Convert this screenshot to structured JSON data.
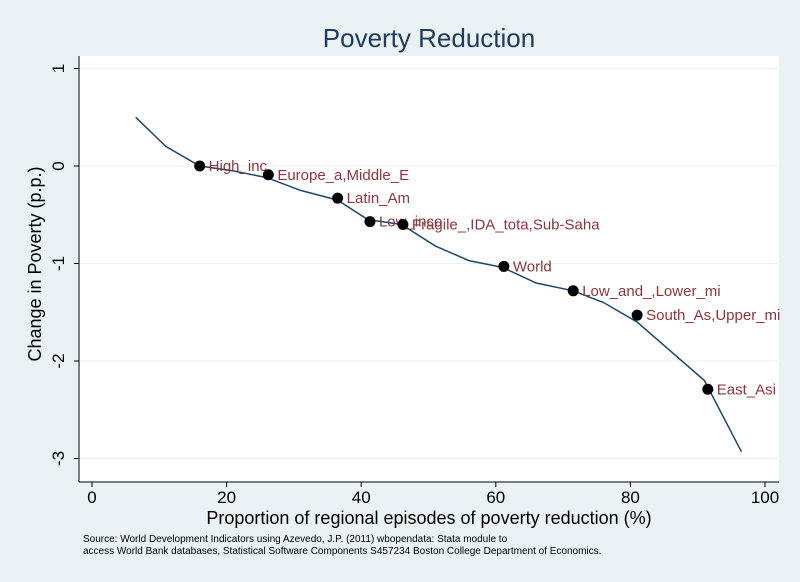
{
  "chart_data": {
    "type": "line",
    "title": "Poverty Reduction",
    "xlabel": "Proportion of regional episodes of poverty reduction (%)",
    "ylabel": "Change in Poverty (p.p.)",
    "xlim": [
      0,
      100
    ],
    "ylim": [
      -3,
      1
    ],
    "xticks": [
      "0",
      "20",
      "40",
      "60",
      "80",
      "100"
    ],
    "yticks": [
      "1",
      "0",
      "-1",
      "-2",
      "-3"
    ],
    "grid": true,
    "fitted_line": {
      "x": [
        6.5,
        11,
        16,
        21,
        26,
        31,
        36.5,
        41,
        46,
        51,
        56,
        61,
        66,
        71.5,
        76,
        81,
        86,
        91,
        96.5
      ],
      "y": [
        0.5,
        0.2,
        0.0,
        -0.05,
        -0.12,
        -0.25,
        -0.35,
        -0.55,
        -0.6,
        -0.82,
        -0.97,
        -1.04,
        -1.2,
        -1.28,
        -1.4,
        -1.6,
        -1.9,
        -2.2,
        -2.93
      ]
    },
    "points": [
      {
        "x": 16,
        "y": 0.0,
        "label": "High_inc"
      },
      {
        "x": 26.2,
        "y": -0.09,
        "label": "Europe_a,Middle_E"
      },
      {
        "x": 36.5,
        "y": -0.33,
        "label": "Latin_Am"
      },
      {
        "x": 41.3,
        "y": -0.57,
        "label": "Low_inco"
      },
      {
        "x": 46.2,
        "y": -0.6,
        "label": "Fragile_,IDA_tota,Sub-Saha"
      },
      {
        "x": 61.2,
        "y": -1.03,
        "label": "World"
      },
      {
        "x": 71.5,
        "y": -1.28,
        "label": "Low_and_,Lower_mi"
      },
      {
        "x": 81.0,
        "y": -1.53,
        "label": "South_As,Upper_mi"
      },
      {
        "x": 91.5,
        "y": -2.29,
        "label": "East_Asi"
      }
    ],
    "colors": {
      "background": "#eaf2f3",
      "plot_area": "#ffffff",
      "grid": "#eaf2f3",
      "line": "#1a476f",
      "marker": "#000000",
      "point_label": "#90353b",
      "title": "#1e3a5f"
    }
  },
  "note": {
    "line1": "Source: World Development Indicators using Azevedo, J.P. (2011) wbopendata: Stata module to",
    "line2": "access World Bank databases, Statistical Software Components S457234 Boston College Department of Economics."
  }
}
